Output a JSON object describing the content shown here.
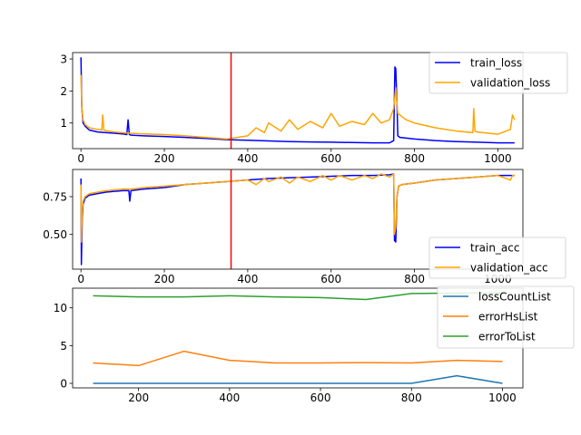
{
  "chart_data": [
    {
      "type": "line",
      "xlim": [
        -20,
        1060
      ],
      "ylim": [
        0.2,
        3.2
      ],
      "xticks": [
        0,
        200,
        400,
        600,
        800,
        1000
      ],
      "xtick_labels": [
        "0",
        "200",
        "400",
        "600",
        "800",
        "1000"
      ],
      "yticks": [
        1,
        2,
        3
      ],
      "ytick_labels": [
        "1",
        "2",
        "3"
      ],
      "grid": false,
      "legend_position": "top-right",
      "vline": {
        "x": 360,
        "color": "#ff0000"
      },
      "series": [
        {
          "name": "train_loss",
          "color": "#0000ff",
          "x": [
            0,
            2,
            5,
            10,
            20,
            40,
            60,
            80,
            100,
            110,
            113,
            116,
            120,
            150,
            200,
            250,
            300,
            350,
            400,
            450,
            500,
            550,
            600,
            650,
            700,
            740,
            750,
            753,
            755,
            758,
            760,
            765,
            800,
            850,
            900,
            950,
            1000,
            1040
          ],
          "y": [
            3.05,
            1.5,
            1.0,
            0.9,
            0.78,
            0.72,
            0.7,
            0.68,
            0.66,
            0.64,
            1.1,
            0.64,
            0.62,
            0.6,
            0.58,
            0.55,
            0.52,
            0.48,
            0.46,
            0.44,
            0.42,
            0.41,
            0.4,
            0.39,
            0.38,
            0.38,
            0.45,
            2.75,
            2.7,
            1.6,
            0.6,
            0.55,
            0.5,
            0.45,
            0.42,
            0.4,
            0.38,
            0.38
          ]
        },
        {
          "name": "validation_loss",
          "color": "#ffa500",
          "x": [
            0,
            2,
            5,
            10,
            20,
            40,
            50,
            52,
            55,
            60,
            80,
            100,
            120,
            150,
            200,
            250,
            300,
            350,
            400,
            420,
            440,
            450,
            480,
            500,
            520,
            550,
            580,
            600,
            620,
            650,
            680,
            700,
            720,
            740,
            750,
            755,
            760,
            780,
            800,
            850,
            900,
            940,
            942,
            945,
            950,
            1000,
            1030,
            1035,
            1040
          ],
          "y": [
            2.5,
            1.5,
            1.1,
            0.95,
            0.85,
            0.8,
            0.78,
            1.25,
            0.78,
            0.76,
            0.72,
            0.7,
            0.68,
            0.66,
            0.64,
            0.6,
            0.55,
            0.5,
            0.6,
            0.85,
            0.7,
            1.0,
            0.75,
            1.1,
            0.8,
            1.05,
            0.85,
            1.3,
            0.9,
            1.05,
            0.95,
            1.3,
            1.0,
            1.1,
            1.45,
            2.1,
            1.3,
            1.1,
            1.0,
            0.85,
            0.75,
            0.7,
            1.45,
            0.75,
            0.72,
            0.65,
            0.8,
            1.25,
            1.1
          ]
        }
      ]
    },
    {
      "type": "line",
      "xlim": [
        -20,
        1060
      ],
      "ylim": [
        0.27,
        0.93
      ],
      "xticks": [
        0,
        200,
        400,
        600,
        800,
        1000
      ],
      "xtick_labels": [
        "0",
        "200",
        "400",
        "600",
        "800",
        "1000"
      ],
      "yticks": [
        0.5,
        0.75
      ],
      "ytick_labels": [
        "0.50",
        "0.75"
      ],
      "grid": false,
      "legend_position": "lower-right",
      "vline": {
        "x": 360,
        "color": "#ff0000"
      },
      "series": [
        {
          "name": "train_acc",
          "color": "#0000ff",
          "x": [
            0,
            1,
            3,
            5,
            10,
            20,
            40,
            60,
            80,
            100,
            115,
            117,
            120,
            150,
            200,
            250,
            300,
            350,
            400,
            450,
            500,
            550,
            600,
            650,
            700,
            740,
            750,
            752,
            755,
            758,
            762,
            770,
            800,
            850,
            900,
            950,
            1000,
            1040
          ],
          "y": [
            0.87,
            0.3,
            0.6,
            0.7,
            0.74,
            0.76,
            0.77,
            0.78,
            0.785,
            0.79,
            0.79,
            0.72,
            0.79,
            0.8,
            0.81,
            0.83,
            0.84,
            0.85,
            0.86,
            0.87,
            0.875,
            0.88,
            0.885,
            0.89,
            0.89,
            0.895,
            0.9,
            0.46,
            0.45,
            0.75,
            0.82,
            0.83,
            0.84,
            0.86,
            0.87,
            0.88,
            0.89,
            0.89
          ]
        },
        {
          "name": "validation_acc",
          "color": "#ffa500",
          "x": [
            0,
            1,
            3,
            5,
            10,
            20,
            40,
            60,
            80,
            100,
            120,
            150,
            200,
            250,
            300,
            350,
            400,
            420,
            440,
            450,
            480,
            500,
            520,
            550,
            580,
            600,
            620,
            650,
            680,
            700,
            720,
            740,
            750,
            752,
            755,
            758,
            762,
            770,
            800,
            850,
            900,
            950,
            1000,
            1030,
            1035,
            1040
          ],
          "y": [
            0.83,
            0.45,
            0.65,
            0.72,
            0.75,
            0.77,
            0.78,
            0.79,
            0.795,
            0.8,
            0.8,
            0.81,
            0.82,
            0.83,
            0.84,
            0.85,
            0.86,
            0.83,
            0.87,
            0.85,
            0.88,
            0.84,
            0.88,
            0.85,
            0.89,
            0.86,
            0.89,
            0.86,
            0.89,
            0.87,
            0.9,
            0.88,
            0.9,
            0.5,
            0.55,
            0.75,
            0.82,
            0.83,
            0.84,
            0.86,
            0.87,
            0.88,
            0.89,
            0.86,
            0.89,
            0.89
          ]
        }
      ]
    },
    {
      "type": "line",
      "xlim": [
        55,
        1045
      ],
      "ylim": [
        -0.6,
        12.6
      ],
      "xticks": [
        200,
        400,
        600,
        800,
        1000
      ],
      "xtick_labels": [
        "200",
        "400",
        "600",
        "800",
        "1000"
      ],
      "yticks": [
        0,
        5,
        10
      ],
      "ytick_labels": [
        "0",
        "5",
        "10"
      ],
      "grid": false,
      "legend_position": "top-right",
      "series": [
        {
          "name": "lossCountList",
          "color": "#1f77b4",
          "x": [
            100,
            200,
            300,
            400,
            500,
            600,
            700,
            800,
            900,
            1000
          ],
          "y": [
            0,
            0,
            0,
            0,
            0,
            0,
            0,
            0,
            1,
            0
          ]
        },
        {
          "name": "errorHsList",
          "color": "#ff7f0e",
          "x": [
            100,
            200,
            300,
            400,
            500,
            600,
            700,
            800,
            900,
            1000
          ],
          "y": [
            2.7,
            2.35,
            4.25,
            3.05,
            2.7,
            2.7,
            2.75,
            2.7,
            3.05,
            2.9
          ]
        },
        {
          "name": "errorToList",
          "color": "#2ca02c",
          "x": [
            100,
            200,
            300,
            400,
            500,
            600,
            700,
            800,
            900,
            1000
          ],
          "y": [
            11.6,
            11.45,
            11.45,
            11.6,
            11.45,
            11.35,
            11.1,
            11.9,
            11.95,
            11.95
          ]
        }
      ]
    }
  ]
}
